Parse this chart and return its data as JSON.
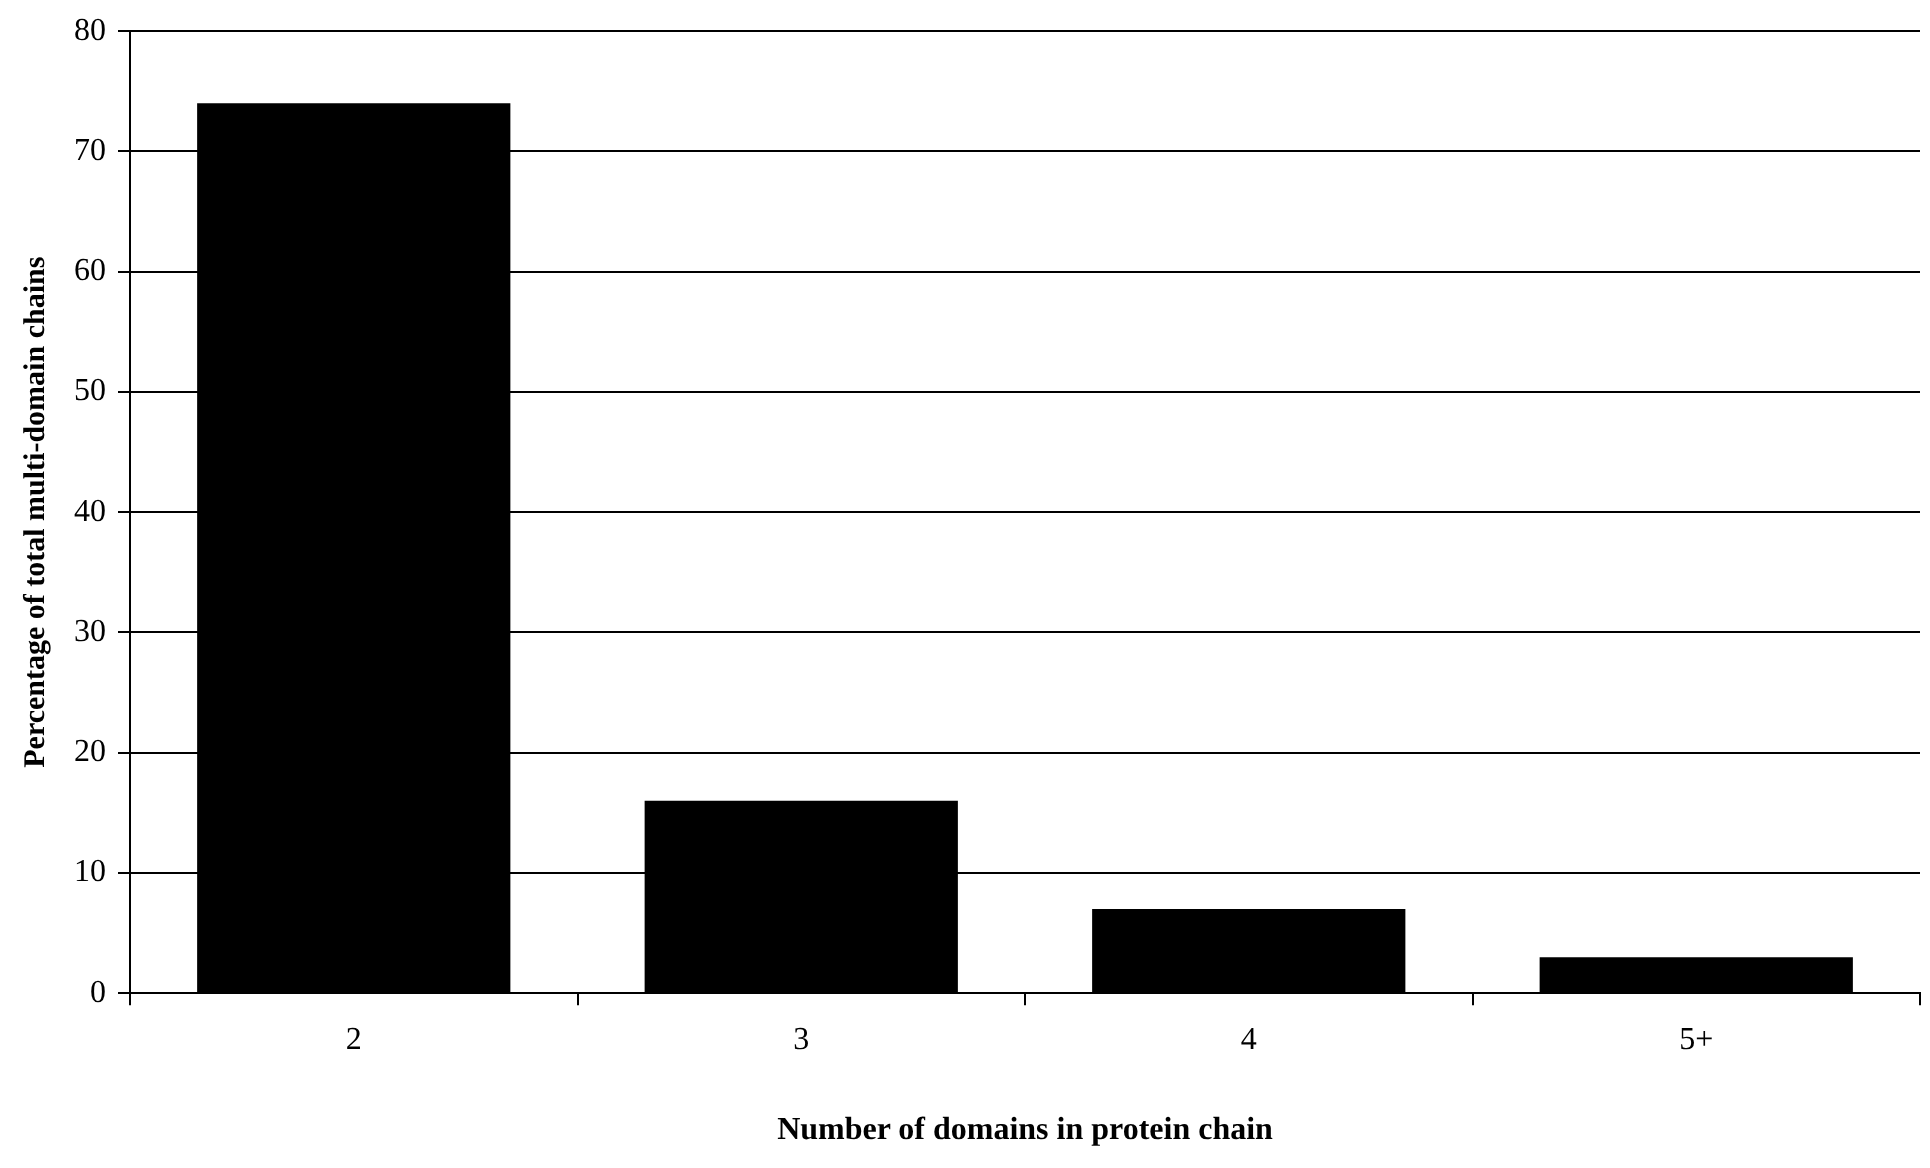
{
  "chart_data": {
    "type": "bar",
    "xlabel": "Number of domains in protein chain",
    "ylabel": "Percentage of total multi-domain chains",
    "categories": [
      "2",
      "3",
      "4",
      "5+"
    ],
    "series": [
      {
        "color": "#000000",
        "values": [
          74,
          16,
          7,
          3
        ]
      }
    ],
    "ylim": [
      0,
      80
    ],
    "yticks": [
      0,
      10,
      20,
      30,
      40,
      50,
      60,
      70,
      80
    ],
    "grid": "y",
    "legend": false
  }
}
